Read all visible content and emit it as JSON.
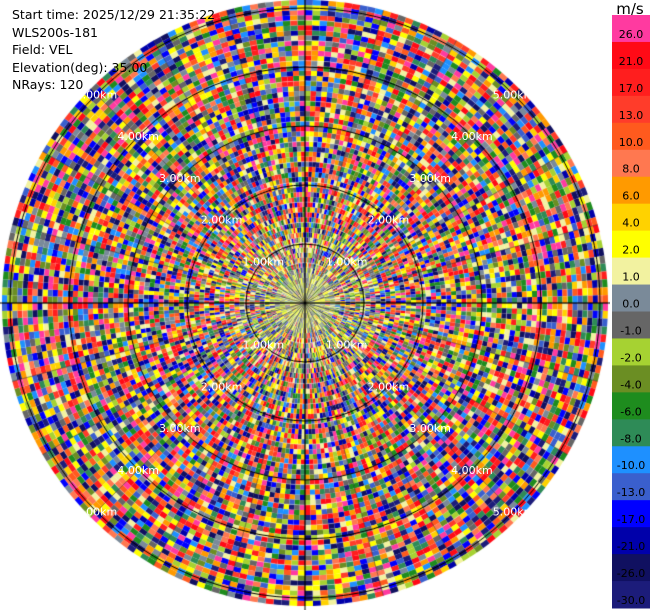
{
  "info": {
    "start_time": "Start time: 2025/12/29 21:35:22",
    "site": "WLS200s-181",
    "field": "Field: VEL",
    "elevation": "Elevation(deg): 35.00",
    "nrays": "NRays: 120"
  },
  "colorbar": {
    "unit": "m/s",
    "bins": [
      {
        "label": "26.0",
        "color": "#ff3aa0"
      },
      {
        "label": "21.0",
        "color": "#ff0a16"
      },
      {
        "label": "17.0",
        "color": "#ff1e1e"
      },
      {
        "label": "13.0",
        "color": "#ff3c2a"
      },
      {
        "label": "10.0",
        "color": "#ff5a1e"
      },
      {
        "label": "8.0",
        "color": "#ff7850"
      },
      {
        "label": "6.0",
        "color": "#ff9a00"
      },
      {
        "label": "4.0",
        "color": "#ffd200"
      },
      {
        "label": "2.0",
        "color": "#ffff00"
      },
      {
        "label": "1.0",
        "color": "#f2f2a0"
      },
      {
        "label": "0.0",
        "color": "#7a8a99"
      },
      {
        "label": "-1.0",
        "color": "#666666"
      },
      {
        "label": "-2.0",
        "color": "#a6d232"
      },
      {
        "label": "-4.0",
        "color": "#6b8e23"
      },
      {
        "label": "-6.0",
        "color": "#1e8c1e"
      },
      {
        "label": "-8.0",
        "color": "#2e8b57"
      },
      {
        "label": "-10.0",
        "color": "#1e90ff"
      },
      {
        "label": "-13.0",
        "color": "#3a5fcd"
      },
      {
        "label": "-17.0",
        "color": "#0000ff"
      },
      {
        "label": "-21.0",
        "color": "#0000aa"
      },
      {
        "label": "-26.0",
        "color": "#101060"
      },
      {
        "label": "-30.0",
        "color": "#1c1c7a"
      }
    ]
  },
  "chart_data": {
    "type": "heatmap",
    "projection": "polar-ppi",
    "field": "VEL",
    "units": "m/s",
    "n_rays": 120,
    "elevation_deg": 35.0,
    "range_rings_km": [
      1.0,
      2.0,
      3.0,
      4.0,
      5.0
    ],
    "ring_labels": [
      {
        "text": "1.00km",
        "azimuths": [
          315,
          45,
          225,
          135
        ]
      },
      {
        "text": "2.00km",
        "azimuths": [
          315,
          45,
          225,
          135
        ]
      },
      {
        "text": "3.00km",
        "azimuths": [
          315,
          45,
          225,
          135
        ]
      },
      {
        "text": "4.00km",
        "azimuths": [
          315,
          45,
          225,
          135
        ]
      },
      {
        "text": "5.00km",
        "azimuths": [
          315,
          45,
          225,
          135
        ]
      }
    ],
    "near_field_dominant_values": [
      0.0,
      1.0,
      2.0,
      -4.0
    ],
    "far_field_note": "values scattered across full range -30 to 26 m/s"
  }
}
